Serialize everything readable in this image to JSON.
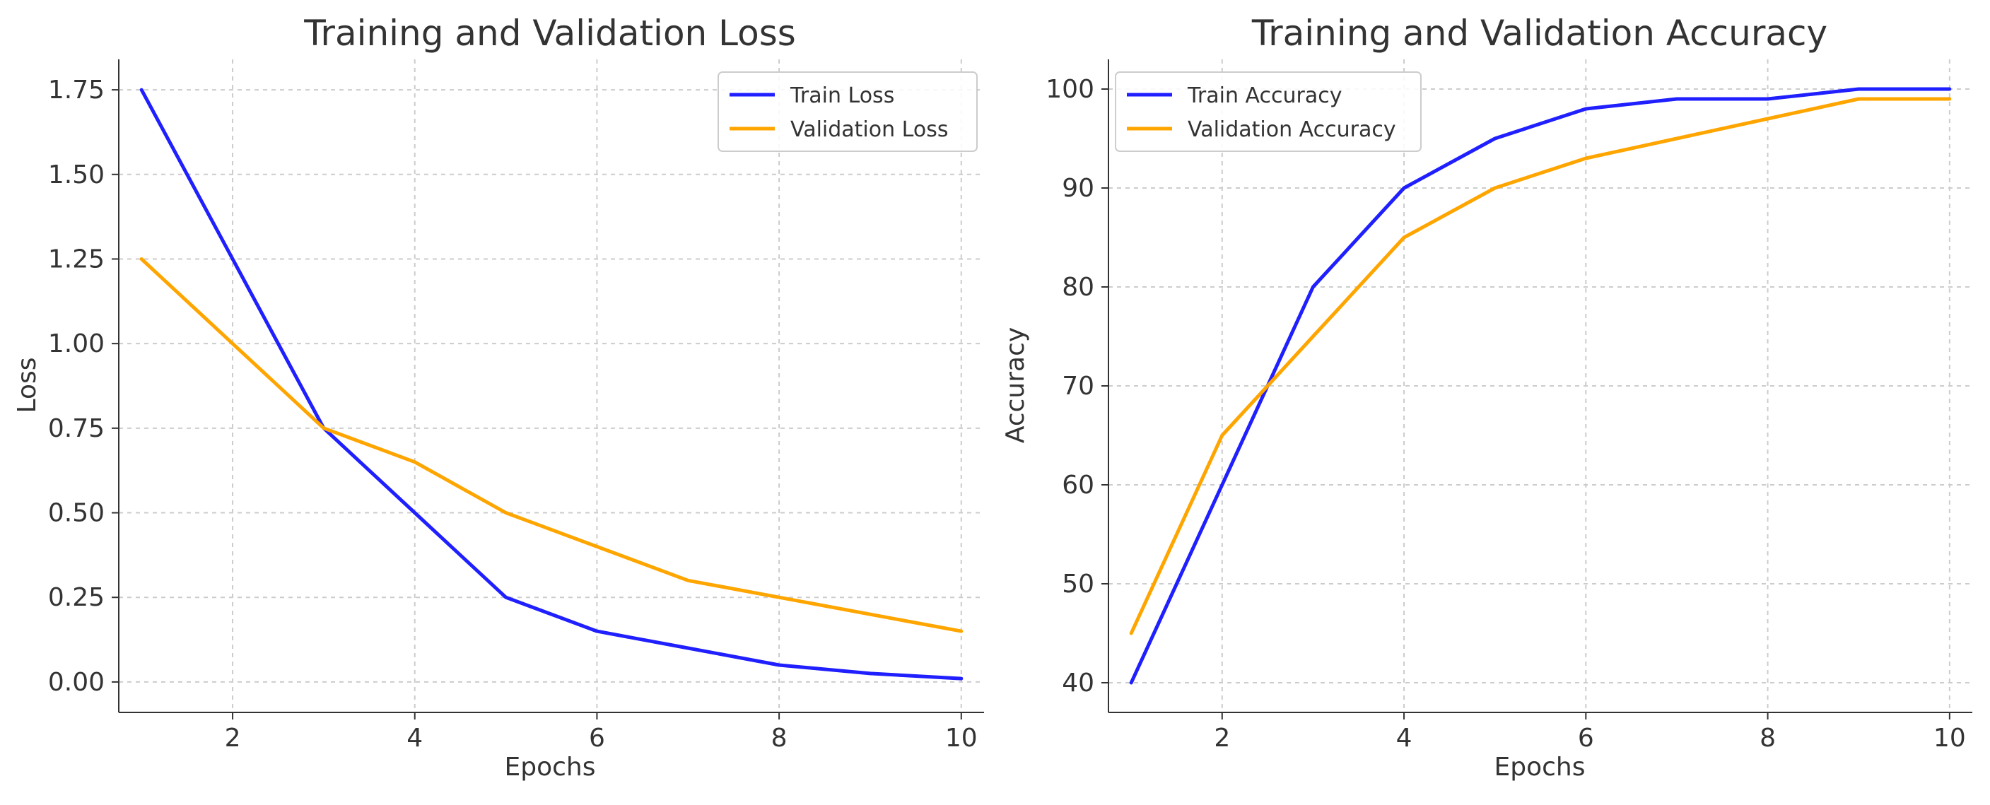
{
  "chart_data": [
    {
      "type": "line",
      "title": "Training and Validation Loss",
      "xlabel": "Epochs",
      "ylabel": "Loss",
      "xlim": [
        0.75,
        10.25
      ],
      "ylim": [
        -0.09,
        1.84
      ],
      "x_ticks": [
        2,
        4,
        6,
        8,
        10
      ],
      "x_tick_labels": [
        "2",
        "4",
        "6",
        "8",
        "10"
      ],
      "y_ticks": [
        0.0,
        0.25,
        0.5,
        0.75,
        1.0,
        1.25,
        1.5,
        1.75
      ],
      "y_tick_labels": [
        "0.00",
        "0.25",
        "0.50",
        "0.75",
        "1.00",
        "1.25",
        "1.50",
        "1.75"
      ],
      "grid": true,
      "legend_position": "top-right",
      "x": [
        1,
        2,
        3,
        4,
        5,
        6,
        7,
        8,
        9,
        10
      ],
      "series": [
        {
          "name": "Train Loss",
          "color": "#1f1fff",
          "values": [
            1.75,
            1.25,
            0.75,
            0.5,
            0.25,
            0.15,
            0.1,
            0.05,
            0.025,
            0.01
          ]
        },
        {
          "name": "Validation Loss",
          "color": "#ffa500",
          "values": [
            1.25,
            1.0,
            0.75,
            0.65,
            0.5,
            0.4,
            0.3,
            0.25,
            0.2,
            0.15
          ]
        }
      ]
    },
    {
      "type": "line",
      "title": "Training and Validation Accuracy",
      "xlabel": "Epochs",
      "ylabel": "Accuracy",
      "xlim": [
        0.75,
        10.25
      ],
      "ylim": [
        37,
        103
      ],
      "x_ticks": [
        2,
        4,
        6,
        8,
        10
      ],
      "x_tick_labels": [
        "2",
        "4",
        "6",
        "8",
        "10"
      ],
      "y_ticks": [
        40,
        50,
        60,
        70,
        80,
        90,
        100
      ],
      "y_tick_labels": [
        "40",
        "50",
        "60",
        "70",
        "80",
        "90",
        "100"
      ],
      "grid": true,
      "legend_position": "top-left",
      "x": [
        1,
        2,
        3,
        4,
        5,
        6,
        7,
        8,
        9,
        10
      ],
      "series": [
        {
          "name": "Train Accuracy",
          "color": "#1f1fff",
          "values": [
            40,
            60,
            80,
            90,
            95,
            98,
            99,
            99,
            100,
            100
          ]
        },
        {
          "name": "Validation Accuracy",
          "color": "#ffa500",
          "values": [
            45,
            65,
            75,
            85,
            90,
            93,
            95,
            97,
            99,
            99
          ]
        }
      ]
    }
  ]
}
